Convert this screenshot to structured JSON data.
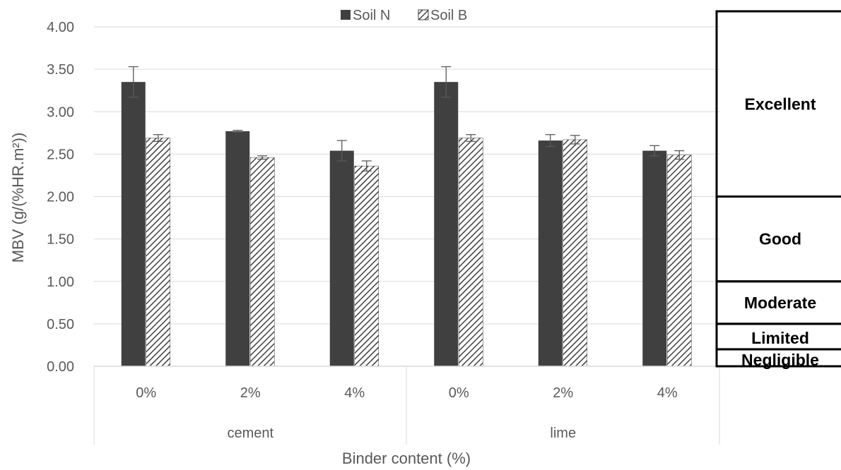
{
  "chart_data": {
    "type": "bar",
    "xlabel": "Binder content (%)",
    "ylabel": "MBV (g/(%HR.m²))",
    "ylim": [
      0,
      4
    ],
    "yticks": [
      "0.00",
      "0.50",
      "1.00",
      "1.50",
      "2.00",
      "2.50",
      "3.00",
      "3.50",
      "4.00"
    ],
    "groups": [
      "cement",
      "lime"
    ],
    "categories": [
      "0%",
      "2%",
      "4%",
      "0%",
      "2%",
      "4%"
    ],
    "legend_position": "top-center",
    "grid": true,
    "series": [
      {
        "name": "Soil N",
        "color": "#404040",
        "pattern": "solid",
        "values": [
          3.35,
          2.77,
          2.54,
          3.35,
          2.66,
          2.54
        ],
        "errors": [
          0.18,
          0.01,
          0.12,
          0.18,
          0.07,
          0.06
        ]
      },
      {
        "name": "Soil B",
        "color": "#404040",
        "pattern": "diagonal-hatch",
        "values": [
          2.69,
          2.46,
          2.36,
          2.69,
          2.67,
          2.49
        ],
        "errors": [
          0.04,
          0.02,
          0.06,
          0.04,
          0.05,
          0.05
        ]
      }
    ],
    "classification": [
      {
        "label": "Excellent",
        "from": 2.0,
        "to": 4.2
      },
      {
        "label": "Good",
        "from": 1.0,
        "to": 2.0
      },
      {
        "label": "Moderate",
        "from": 0.5,
        "to": 1.0
      },
      {
        "label": "Limited",
        "from": 0.2,
        "to": 0.5
      },
      {
        "label": "Negligible",
        "from": 0.0,
        "to": 0.2
      }
    ]
  }
}
